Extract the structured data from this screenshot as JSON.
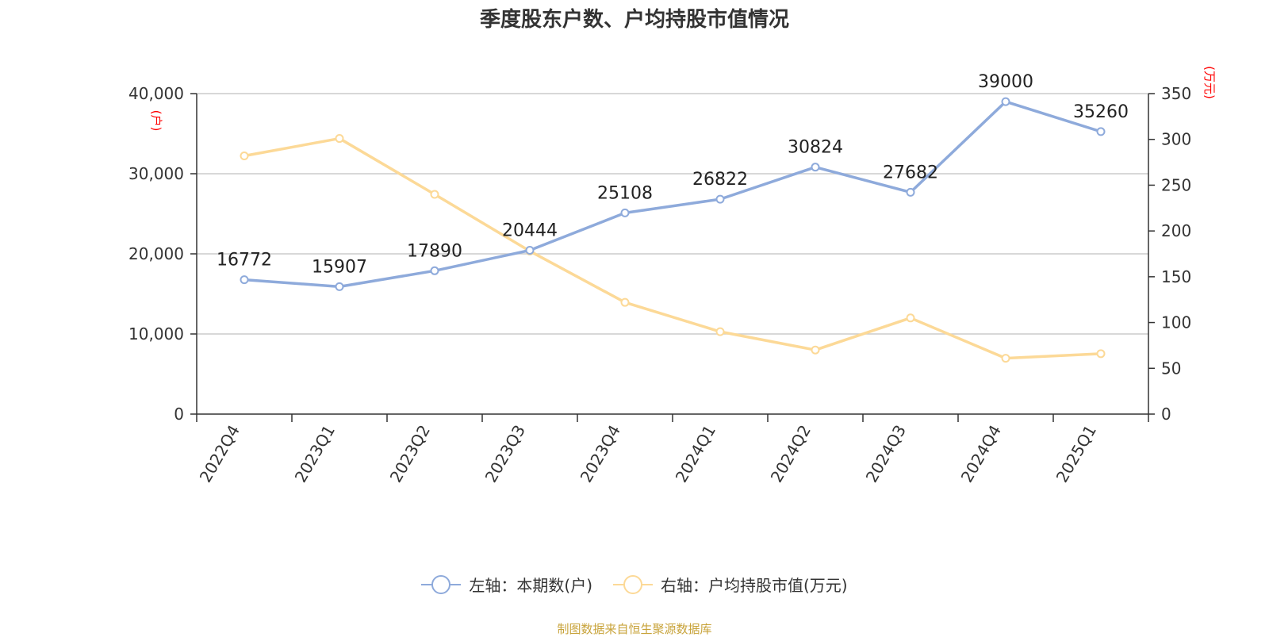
{
  "title": "季度股东户数、户均持股市值情况",
  "source_note": "制图数据来自恒生聚源数据库",
  "colors": {
    "left_series": "#8eaadb",
    "right_series": "#fcd997",
    "axis_unit": "#ff0000"
  },
  "chart_data": {
    "type": "line",
    "title": "季度股东户数、户均持股市值情况",
    "categories": [
      "2022Q4",
      "2023Q1",
      "2023Q2",
      "2023Q3",
      "2023Q4",
      "2024Q1",
      "2024Q2",
      "2024Q3",
      "2024Q4",
      "2025Q1"
    ],
    "series": [
      {
        "name": "左轴：本期数(户)",
        "axis": "left",
        "values": [
          16772,
          15907,
          17890,
          20444,
          25108,
          26822,
          30824,
          27682,
          39000,
          35260
        ],
        "data_labels": true
      },
      {
        "name": "右轴：户均持股市值(万元)",
        "axis": "right",
        "values": [
          282,
          301,
          240,
          178,
          122,
          90,
          70,
          105,
          61,
          66
        ],
        "data_labels": false
      }
    ],
    "left_axis": {
      "unit_label": "(户)",
      "range": [
        0,
        40000
      ],
      "ticks": [
        "0",
        "10,000",
        "20,000",
        "30,000",
        "40,000"
      ],
      "tick_values": [
        0,
        10000,
        20000,
        30000,
        40000
      ]
    },
    "right_axis": {
      "unit_label": "(万元)",
      "range": [
        0,
        350
      ],
      "ticks": [
        "0",
        "50",
        "100",
        "150",
        "200",
        "250",
        "300",
        "350"
      ],
      "tick_values": [
        0,
        50,
        100,
        150,
        200,
        250,
        300,
        350
      ]
    },
    "grid": true,
    "legend_position": "bottom-center"
  }
}
